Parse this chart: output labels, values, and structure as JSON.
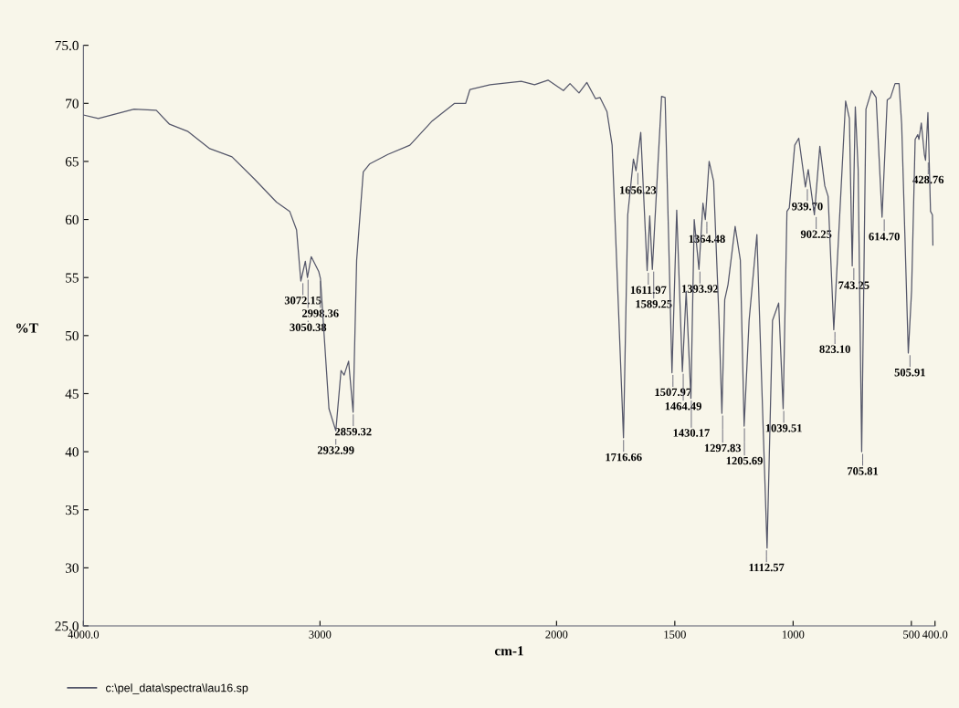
{
  "chart_data": {
    "type": "line",
    "xlabel": "cm-1",
    "ylabel": "%T",
    "xlim": [
      4000,
      400
    ],
    "ylim": [
      25,
      75
    ],
    "xticks": [
      {
        "value": 4000,
        "label": "4000.0"
      },
      3000,
      2000,
      1500,
      1000,
      500,
      {
        "value": 400,
        "label": "400.0"
      }
    ],
    "yticks": [
      {
        "value": 25,
        "label": "25.0"
      },
      30,
      35,
      40,
      45,
      50,
      55,
      60,
      65,
      70,
      {
        "value": 75,
        "label": "75.0"
      }
    ],
    "grid": false,
    "legend": "bottom left",
    "marker": "none",
    "line_style": "solid",
    "series": [
      {
        "name": "c:\\pel_data\\spectra\\lau16.sp",
        "color": "#55576a",
        "x": [
          4000,
          3937,
          3786,
          3692,
          3636,
          3560,
          3466,
          3372,
          3278,
          3184,
          3128,
          3099,
          3081,
          3062,
          3053,
          3037,
          3005,
          2998,
          2962,
          2933,
          2911,
          2898,
          2879,
          2860,
          2845,
          2817,
          2789,
          2713,
          2620,
          2525,
          2431,
          2384,
          2366,
          2281,
          2149,
          2093,
          2036,
          1971,
          1943,
          1905,
          1872,
          1835,
          1816,
          1787,
          1765,
          1717,
          1699,
          1675,
          1664,
          1644,
          1617,
          1606,
          1595,
          1556,
          1541,
          1512,
          1492,
          1468,
          1452,
          1432,
          1418,
          1398,
          1381,
          1371,
          1355,
          1336,
          1313,
          1301,
          1289,
          1275,
          1245,
          1223,
          1207,
          1186,
          1153,
          1110,
          1087,
          1061,
          1042,
          1026,
          1016,
          993,
          976,
          948,
          936,
          910,
          887,
          866,
          852,
          828,
          778,
          762,
          750,
          737,
          725,
          710,
          692,
          668,
          649,
          624,
          602,
          588,
          569,
          552,
          541,
          513,
          499,
          484,
          473,
          468,
          458,
          445,
          440,
          430,
          419,
          411,
          409
        ],
        "values": [
          69.0,
          68.7,
          69.5,
          69.4,
          68.2,
          67.6,
          66.1,
          65.4,
          63.5,
          61.5,
          60.7,
          59.1,
          54.7,
          56.4,
          55.0,
          56.8,
          55.5,
          54.9,
          43.7,
          41.8,
          47.0,
          46.6,
          47.8,
          43.4,
          56.5,
          64.1,
          64.8,
          65.6,
          66.4,
          68.5,
          70.0,
          70.0,
          71.2,
          71.6,
          71.9,
          71.6,
          72.0,
          71.1,
          71.7,
          70.9,
          71.8,
          70.4,
          70.5,
          69.3,
          66.4,
          41.2,
          60.4,
          65.2,
          64.2,
          67.5,
          55.6,
          60.3,
          55.7,
          70.6,
          70.5,
          46.8,
          60.8,
          46.9,
          53.8,
          44.6,
          60.0,
          55.7,
          61.4,
          60.0,
          65.0,
          63.3,
          51.3,
          43.3,
          53.1,
          54.4,
          59.4,
          56.5,
          42.2,
          51.3,
          58.7,
          31.7,
          51.3,
          52.8,
          43.7,
          60.7,
          61.0,
          66.4,
          67.0,
          62.8,
          64.3,
          60.4,
          66.3,
          62.9,
          62.0,
          50.5,
          70.2,
          68.7,
          56.0,
          69.7,
          64.3,
          40.0,
          69.5,
          71.1,
          70.5,
          60.2,
          70.3,
          70.5,
          71.7,
          71.7,
          68.2,
          48.5,
          53.9,
          66.9,
          67.3,
          66.9,
          68.3,
          65.6,
          65.1,
          69.2,
          60.7,
          60.4,
          57.8
        ]
      }
    ],
    "annotations": [
      {
        "text": "3072.15",
        "x": 3072.15,
        "y": 54.7
      },
      {
        "text": "3050.38",
        "x": 3050.38,
        "y": 55.0
      },
      {
        "text": "2998.36",
        "x": 2998.36,
        "y": 54.9
      },
      {
        "text": "2932.99",
        "x": 2932.99,
        "y": 41.8
      },
      {
        "text": "2859.32",
        "x": 2859.32,
        "y": 43.4
      },
      {
        "text": "1716.66",
        "x": 1716.66,
        "y": 41.2
      },
      {
        "text": "1656.23",
        "x": 1656.23,
        "y": 64.2
      },
      {
        "text": "1611.97",
        "x": 1611.97,
        "y": 55.6
      },
      {
        "text": "1589.25",
        "x": 1589.25,
        "y": 55.7
      },
      {
        "text": "1507.97",
        "x": 1507.97,
        "y": 46.8
      },
      {
        "text": "1464.49",
        "x": 1464.49,
        "y": 46.9
      },
      {
        "text": "1430.17",
        "x": 1430.17,
        "y": 44.6
      },
      {
        "text": "1393.92",
        "x": 1393.92,
        "y": 55.7
      },
      {
        "text": "1364.48",
        "x": 1364.48,
        "y": 60.0
      },
      {
        "text": "1297.83",
        "x": 1297.83,
        "y": 43.3
      },
      {
        "text": "1205.69",
        "x": 1205.69,
        "y": 42.2
      },
      {
        "text": "1112.57",
        "x": 1112.57,
        "y": 31.7
      },
      {
        "text": "1039.51",
        "x": 1039.51,
        "y": 43.7
      },
      {
        "text": "939.70",
        "x": 939.7,
        "y": 62.8
      },
      {
        "text": "902.25",
        "x": 902.25,
        "y": 60.4
      },
      {
        "text": "823.10",
        "x": 823.1,
        "y": 50.5
      },
      {
        "text": "743.25",
        "x": 743.25,
        "y": 56.0
      },
      {
        "text": "705.81",
        "x": 705.81,
        "y": 40.0
      },
      {
        "text": "614.70",
        "x": 614.7,
        "y": 60.2
      },
      {
        "text": "505.91",
        "x": 505.91,
        "y": 48.5
      },
      {
        "text": "428.76",
        "x": 428.76,
        "y": 65.1
      }
    ]
  }
}
